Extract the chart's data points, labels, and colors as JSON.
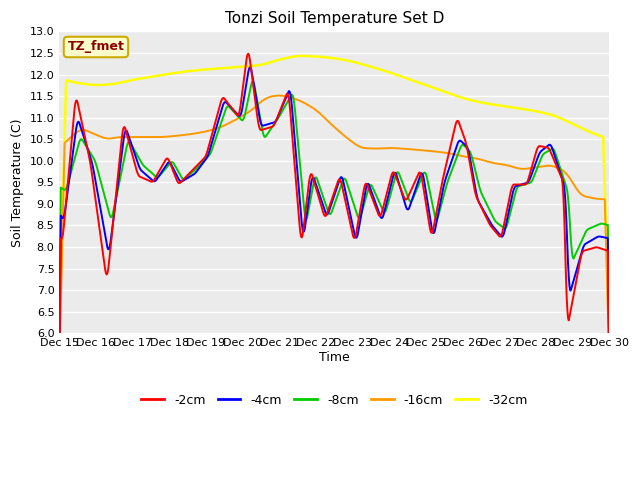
{
  "title": "Tonzi Soil Temperature Set D",
  "xlabel": "Time",
  "ylabel": "Soil Temperature (C)",
  "ylim": [
    6.0,
    13.0
  ],
  "yticks": [
    6.0,
    6.5,
    7.0,
    7.5,
    8.0,
    8.5,
    9.0,
    9.5,
    10.0,
    10.5,
    11.0,
    11.5,
    12.0,
    12.5,
    13.0
  ],
  "colors": {
    "-2cm": "#ff0000",
    "-4cm": "#0000ff",
    "-8cm": "#00cc00",
    "-16cm": "#ff9900",
    "-32cm": "#ffff00"
  },
  "annotation": "TZ_fmet",
  "xtick_positions": [
    0,
    1,
    2,
    3,
    4,
    5,
    6,
    7,
    8,
    9,
    10,
    11,
    12,
    13,
    14,
    15
  ],
  "xtick_labels": [
    "Dec 15",
    "Dec 16",
    "Dec 17",
    "Dec 18",
    "Dec 19",
    "Dec 20",
    "Dec 21",
    "Dec 22",
    "Dec 23",
    "Dec 24",
    "Dec 25",
    "Dec 26",
    "Dec 27",
    "Dec 28",
    "Dec 29",
    "Dec 30"
  ],
  "fig_facecolor": "#ffffff",
  "ax_facecolor": "#ebebeb",
  "grid_color": "#ffffff",
  "title_fontsize": 11,
  "label_fontsize": 9,
  "tick_fontsize": 8
}
